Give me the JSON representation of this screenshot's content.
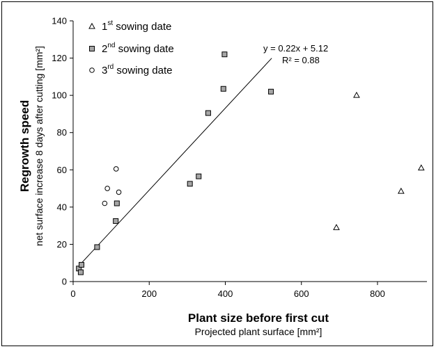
{
  "chart_data": {
    "type": "scatter",
    "xlabel": "Plant size before first cut",
    "xlabel_sub": "Projected plant surface [mm²]",
    "ylabel": "Regrowth speed",
    "ylabel_sub": "net surface increase 8 days after cutting [mm²]",
    "xlim": [
      0,
      930
    ],
    "ylim": [
      0,
      140
    ],
    "xticks": [
      "0",
      "200",
      "400",
      "600",
      "800"
    ],
    "yticks": [
      "0",
      "20",
      "40",
      "60",
      "80",
      "100",
      "120",
      "140"
    ],
    "grid": false,
    "legend_position": "top-left",
    "series": [
      {
        "name_base": "1",
        "name_sup": "st",
        "name_rest": " sowing date",
        "marker": "triangle",
        "fill": "#ffffff",
        "stroke": "#000000",
        "points": [
          [
            692,
            29
          ],
          [
            745,
            100
          ],
          [
            862,
            48.5
          ],
          [
            915,
            61
          ]
        ]
      },
      {
        "name_base": "2",
        "name_sup": "nd",
        "name_rest": " sowing date",
        "marker": "square",
        "fill": "#a6a6a6",
        "stroke": "#000000",
        "points": [
          [
            15,
            7
          ],
          [
            20,
            5
          ],
          [
            22,
            9
          ],
          [
            63,
            18.5
          ],
          [
            112,
            32.5
          ],
          [
            115,
            42
          ],
          [
            307,
            52.5
          ],
          [
            330,
            56.5
          ],
          [
            355,
            90.5
          ],
          [
            395,
            103.5
          ],
          [
            398,
            122
          ],
          [
            520,
            102
          ]
        ]
      },
      {
        "name_base": "3",
        "name_sup": "rd",
        "name_rest": " sowing date",
        "marker": "circle",
        "fill": "#ffffff",
        "stroke": "#000000",
        "points": [
          [
            83,
            42
          ],
          [
            90,
            50
          ],
          [
            113,
            60.5
          ],
          [
            120,
            48
          ]
        ]
      }
    ],
    "trendline": {
      "slope": 0.22,
      "intercept": 5.12,
      "x_range": [
        18,
        522
      ],
      "equation": "y = 0.22x + 5.12",
      "r2": "R² = 0.88"
    }
  }
}
